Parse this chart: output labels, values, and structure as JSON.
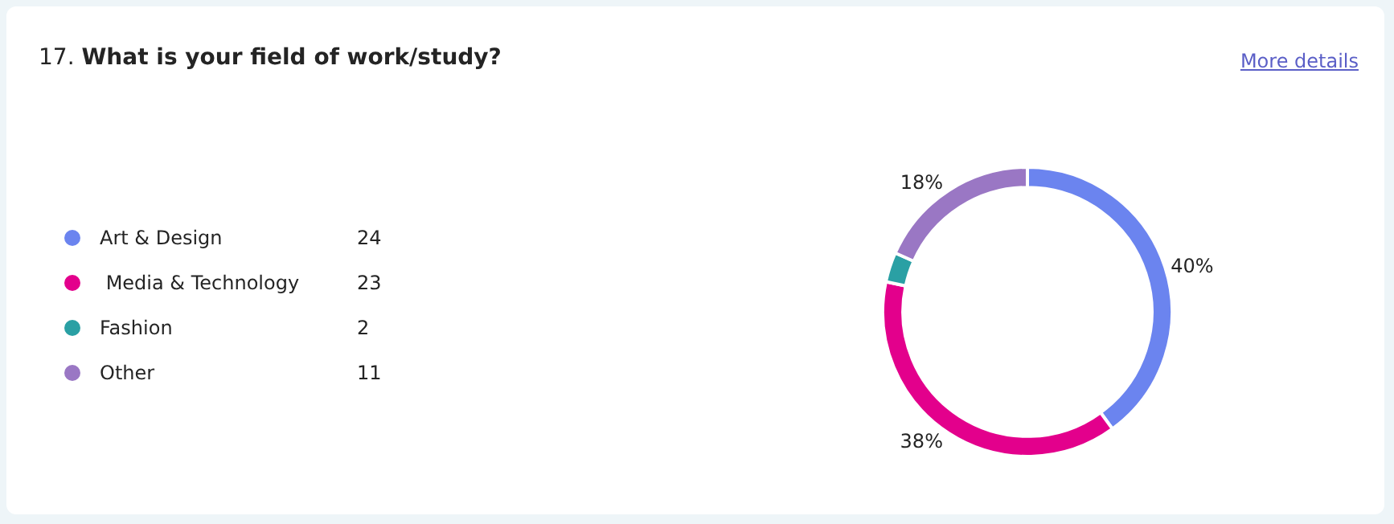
{
  "chart_data": {
    "type": "donut",
    "title": "17. What is your field of work/study?",
    "annotations": [
      "More details",
      "24",
      "23",
      "2",
      "11"
    ],
    "categories": [
      "Art & Design",
      " Media & Technology",
      "Fashion",
      "Other"
    ],
    "values": [
      40,
      38.33,
      3.33,
      18.33
    ],
    "colors": [
      "#6b84ef",
      "#e3008c",
      "#2aa0a4",
      "#9a77c4"
    ],
    "value_labels": [
      "40%",
      "38%",
      null,
      "18%"
    ],
    "legend": "left"
  }
}
